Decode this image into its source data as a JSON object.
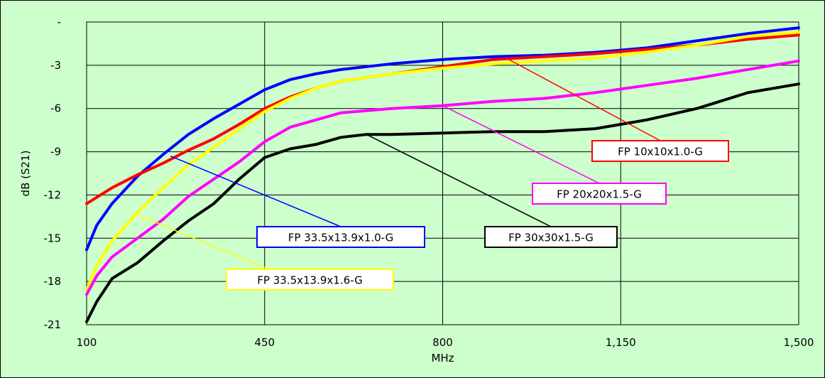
{
  "chart_data": {
    "type": "line",
    "title": "",
    "xlabel": "MHz",
    "ylabel": "dB (S21)",
    "xlim": [
      100,
      1500
    ],
    "ylim": [
      -21,
      0
    ],
    "x_ticks": [
      "100",
      "450",
      "800",
      "1,150",
      "1,500"
    ],
    "y_ticks": [
      "-",
      "-3",
      "-6",
      "-9",
      "-12",
      "-15",
      "-18",
      "-21"
    ],
    "grid": true,
    "series": [
      {
        "name": "FP 33.5x13.9x1.0-G",
        "color": "#0000ff",
        "x": [
          100,
          120,
          150,
          200,
          250,
          300,
          350,
          400,
          450,
          500,
          550,
          600,
          700,
          800,
          900,
          1000,
          1100,
          1200,
          1300,
          1400,
          1500
        ],
        "y": [
          -15.8,
          -14.1,
          -12.6,
          -10.7,
          -9.2,
          -7.8,
          -6.7,
          -5.7,
          -4.7,
          -4.0,
          -3.6,
          -3.3,
          -2.9,
          -2.6,
          -2.4,
          -2.3,
          -2.1,
          -1.8,
          -1.3,
          -0.8,
          -0.4
        ]
      },
      {
        "name": "FP 10x10x1.0-G",
        "color": "#ff0000",
        "x": [
          100,
          150,
          200,
          250,
          300,
          350,
          400,
          450,
          500,
          550,
          600,
          700,
          800,
          900,
          1000,
          1100,
          1200,
          1300,
          1400,
          1500
        ],
        "y": [
          -12.6,
          -11.5,
          -10.6,
          -9.8,
          -8.9,
          -8.1,
          -7.1,
          -6.0,
          -5.2,
          -4.6,
          -4.1,
          -3.6,
          -3.1,
          -2.6,
          -2.4,
          -2.2,
          -1.9,
          -1.6,
          -1.2,
          -0.9
        ]
      },
      {
        "name": "FP 33.5x13.9x1.6-G",
        "color": "#ffff00",
        "x": [
          100,
          120,
          150,
          200,
          250,
          300,
          350,
          400,
          450,
          500,
          550,
          600,
          700,
          800,
          900,
          1000,
          1100,
          1200,
          1300,
          1400,
          1500
        ],
        "y": [
          -18.6,
          -16.9,
          -15.2,
          -13.2,
          -11.5,
          -9.9,
          -8.7,
          -7.4,
          -6.2,
          -5.3,
          -4.6,
          -4.1,
          -3.6,
          -3.2,
          -2.9,
          -2.7,
          -2.5,
          -2.1,
          -1.6,
          -1.0,
          -0.7
        ]
      },
      {
        "name": "FP 20x20x1.5-G",
        "color": "#ff00ff",
        "x": [
          100,
          120,
          150,
          200,
          250,
          300,
          350,
          400,
          450,
          500,
          550,
          600,
          700,
          800,
          900,
          1000,
          1100,
          1200,
          1300,
          1400,
          1500
        ],
        "y": [
          -18.9,
          -17.6,
          -16.3,
          -15.0,
          -13.7,
          -12.1,
          -10.9,
          -9.7,
          -8.3,
          -7.3,
          -6.8,
          -6.3,
          -6.0,
          -5.8,
          -5.5,
          -5.3,
          -4.9,
          -4.4,
          -3.9,
          -3.3,
          -2.7
        ]
      },
      {
        "name": "FP 30x30x1.5-G",
        "color": "#000000",
        "x": [
          100,
          120,
          150,
          200,
          250,
          300,
          350,
          400,
          450,
          500,
          550,
          600,
          650,
          700,
          800,
          900,
          1000,
          1100,
          1200,
          1300,
          1400,
          1500
        ],
        "y": [
          -20.8,
          -19.4,
          -17.8,
          -16.7,
          -15.2,
          -13.8,
          -12.6,
          -10.9,
          -9.4,
          -8.8,
          -8.5,
          -8.0,
          -7.8,
          -7.8,
          -7.7,
          -7.6,
          -7.6,
          -7.4,
          -6.8,
          -6.0,
          -4.9,
          -4.3
        ]
      }
    ],
    "callouts": [
      {
        "label": "FP 10x10x1.0-G",
        "color": "#ff0000",
        "point": [
          930,
          -2.6
        ]
      },
      {
        "label": "FP 20x20x1.5-G",
        "color": "#ff00ff",
        "point": [
          800,
          -5.8
        ]
      },
      {
        "label": "FP 30x30x1.5-G",
        "color": "#000000",
        "point": [
          650,
          -7.8
        ]
      },
      {
        "label": "FP 33.5x13.9x1.0-G",
        "color": "#0000ff",
        "point": [
          265,
          -9.3
        ]
      },
      {
        "label": "FP 33.5x13.9x1.6-G",
        "color": "#ffff00",
        "point": [
          195,
          -13.3
        ]
      }
    ]
  }
}
